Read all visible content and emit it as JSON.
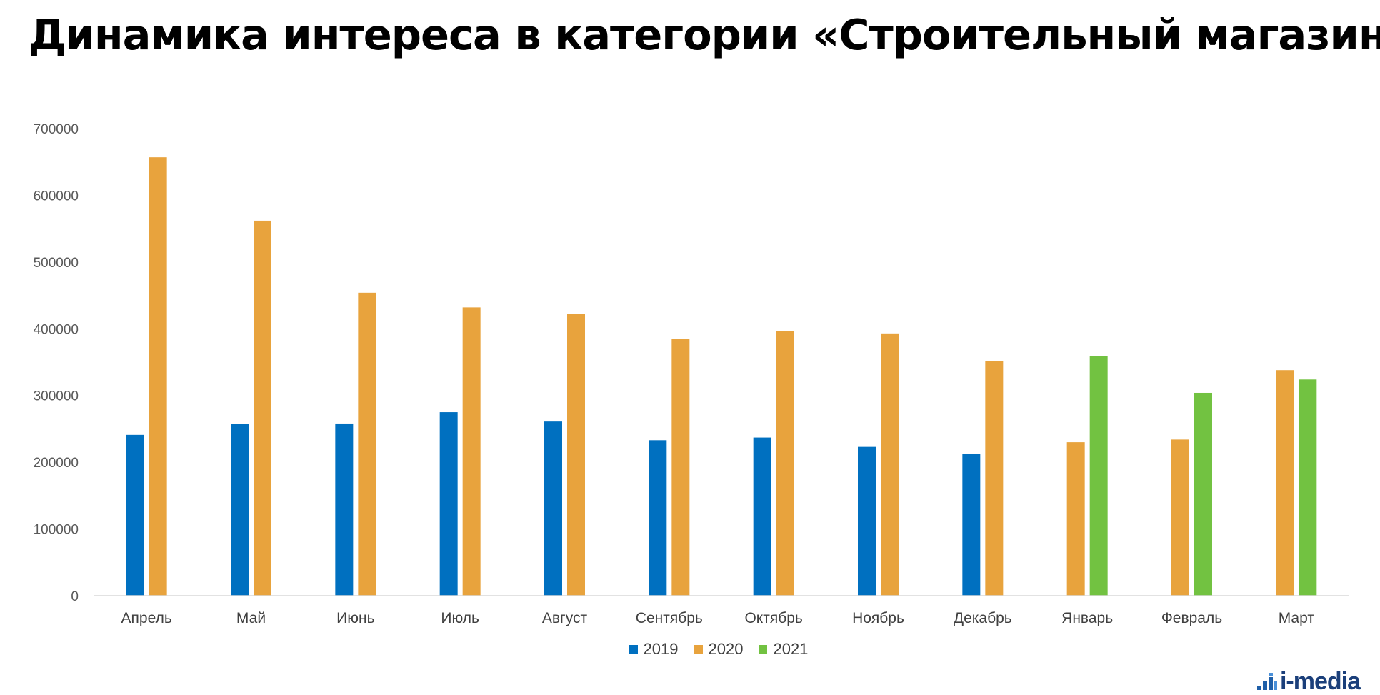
{
  "title": "Динамика интереса в категории «Строительный магазин»",
  "chart_data": {
    "type": "bar",
    "categories": [
      "Апрель",
      "Май",
      "Июнь",
      "Июль",
      "Август",
      "Сентябрь",
      "Октябрь",
      "Ноябрь",
      "Декабрь",
      "Январь",
      "Февраль",
      "Март"
    ],
    "series": [
      {
        "name": "2019",
        "color": "#0070c0",
        "values": [
          241000,
          257000,
          258000,
          275000,
          261000,
          233000,
          237000,
          223000,
          213000,
          null,
          null,
          null
        ]
      },
      {
        "name": "2020",
        "color": "#e8a33d",
        "values": [
          657000,
          562000,
          454000,
          432000,
          422000,
          385000,
          397000,
          393000,
          352000,
          230000,
          234000,
          338000
        ]
      },
      {
        "name": "2021",
        "color": "#72c241",
        "values": [
          null,
          null,
          null,
          null,
          null,
          null,
          null,
          null,
          null,
          359000,
          304000,
          324000
        ]
      }
    ],
    "bar_slots": [
      [
        "2019",
        "2020"
      ],
      [
        "2019",
        "2020"
      ],
      [
        "2019",
        "2020"
      ],
      [
        "2019",
        "2020"
      ],
      [
        "2019",
        "2020"
      ],
      [
        "2019",
        "2020"
      ],
      [
        "2019",
        "2020"
      ],
      [
        "2019",
        "2020"
      ],
      [
        "2019",
        "2020"
      ],
      [
        "2020",
        "2021"
      ],
      [
        "2020",
        "2021"
      ],
      [
        "2020",
        "2021"
      ]
    ],
    "ylim": [
      0,
      700000
    ],
    "yticks": [
      "0",
      "100000",
      "200000",
      "300000",
      "400000",
      "500000",
      "600000",
      "700000"
    ],
    "grid": false,
    "legend": "bottom-center",
    "xlabel": "",
    "ylabel": ""
  },
  "legend": {
    "items": [
      {
        "label": "2019",
        "color": "#0070c0"
      },
      {
        "label": "2020",
        "color": "#e8a33d"
      },
      {
        "label": "2021",
        "color": "#72c241"
      }
    ]
  },
  "logo": {
    "text": "i-media",
    "color": "#1b3f7a"
  }
}
